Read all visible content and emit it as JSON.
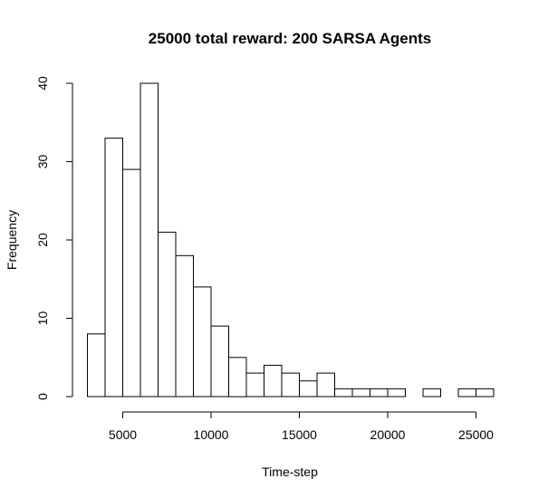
{
  "chart_data": {
    "type": "bar",
    "subtype": "histogram",
    "title": "25000 total reward: 200 SARSA Agents",
    "xlabel": "Time-step",
    "ylabel": "Frequency",
    "bin_width": 1000,
    "bins": [
      {
        "start": 3000,
        "end": 4000,
        "value": 8
      },
      {
        "start": 4000,
        "end": 5000,
        "value": 33
      },
      {
        "start": 5000,
        "end": 6000,
        "value": 29
      },
      {
        "start": 6000,
        "end": 7000,
        "value": 40
      },
      {
        "start": 7000,
        "end": 8000,
        "value": 21
      },
      {
        "start": 8000,
        "end": 9000,
        "value": 18
      },
      {
        "start": 9000,
        "end": 10000,
        "value": 14
      },
      {
        "start": 10000,
        "end": 11000,
        "value": 9
      },
      {
        "start": 11000,
        "end": 12000,
        "value": 5
      },
      {
        "start": 12000,
        "end": 13000,
        "value": 3
      },
      {
        "start": 13000,
        "end": 14000,
        "value": 4
      },
      {
        "start": 14000,
        "end": 15000,
        "value": 3
      },
      {
        "start": 15000,
        "end": 16000,
        "value": 2
      },
      {
        "start": 16000,
        "end": 17000,
        "value": 3
      },
      {
        "start": 17000,
        "end": 18000,
        "value": 1
      },
      {
        "start": 18000,
        "end": 19000,
        "value": 1
      },
      {
        "start": 19000,
        "end": 20000,
        "value": 1
      },
      {
        "start": 20000,
        "end": 21000,
        "value": 1
      },
      {
        "start": 21000,
        "end": 22000,
        "value": 0
      },
      {
        "start": 22000,
        "end": 23000,
        "value": 1
      },
      {
        "start": 23000,
        "end": 24000,
        "value": 0
      },
      {
        "start": 24000,
        "end": 25000,
        "value": 1
      },
      {
        "start": 25000,
        "end": 26000,
        "value": 1
      }
    ],
    "xlim": [
      3000,
      26000
    ],
    "ylim": [
      0,
      40
    ],
    "x_ticks": [
      5000,
      10000,
      15000,
      20000,
      25000
    ],
    "x_tick_labels": [
      "5000",
      "10000",
      "15000",
      "20000",
      "25000"
    ],
    "y_ticks": [
      0,
      10,
      20,
      30,
      40
    ],
    "y_tick_labels": [
      "0",
      "10",
      "20",
      "30",
      "40"
    ],
    "grid": false,
    "bar_fill": "#ffffff",
    "bar_stroke": "#000000"
  }
}
